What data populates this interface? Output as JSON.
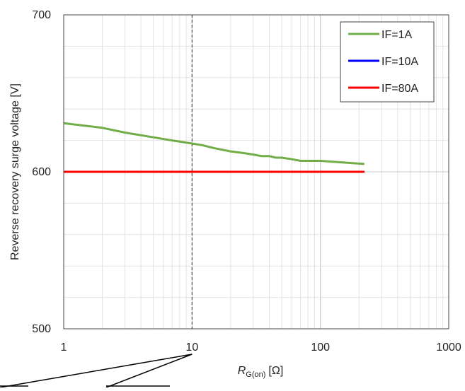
{
  "chart_data": {
    "type": "line",
    "xscale": "log",
    "xlim": [
      1,
      1000
    ],
    "ylim": [
      500,
      700
    ],
    "grid": true,
    "legend_position": "top-right",
    "xlabel_main": "R",
    "xlabel_sub": "G(on)",
    "xlabel_unit": "[Ω]",
    "ylabel": "Reverse recovery surge voltage [V]",
    "xticks": [
      "1",
      "10",
      "100",
      "1000"
    ],
    "xtick_values": [
      1,
      10,
      100,
      1000
    ],
    "yticks": [
      "500",
      "600",
      "700"
    ],
    "ytick_values": [
      500,
      600,
      700
    ],
    "reference_line_x": 10,
    "series": [
      {
        "name": "IF=1A",
        "color": "#70ad47",
        "x": [
          1,
          2,
          3,
          5,
          7,
          10,
          12,
          15,
          20,
          25,
          30,
          35,
          40,
          45,
          50,
          60,
          70,
          100,
          150,
          220
        ],
        "y": [
          631,
          628,
          625,
          622,
          620,
          618,
          617,
          615,
          613,
          612,
          611,
          610,
          610,
          609,
          609,
          608,
          607,
          607,
          606,
          605
        ]
      },
      {
        "name": "IF=10A",
        "color": "#0000ff",
        "x": [
          1,
          220
        ],
        "y": [
          600,
          600
        ]
      },
      {
        "name": "IF=80A",
        "color": "#ff0000",
        "x": [
          1,
          220
        ],
        "y": [
          600,
          600
        ]
      }
    ]
  }
}
